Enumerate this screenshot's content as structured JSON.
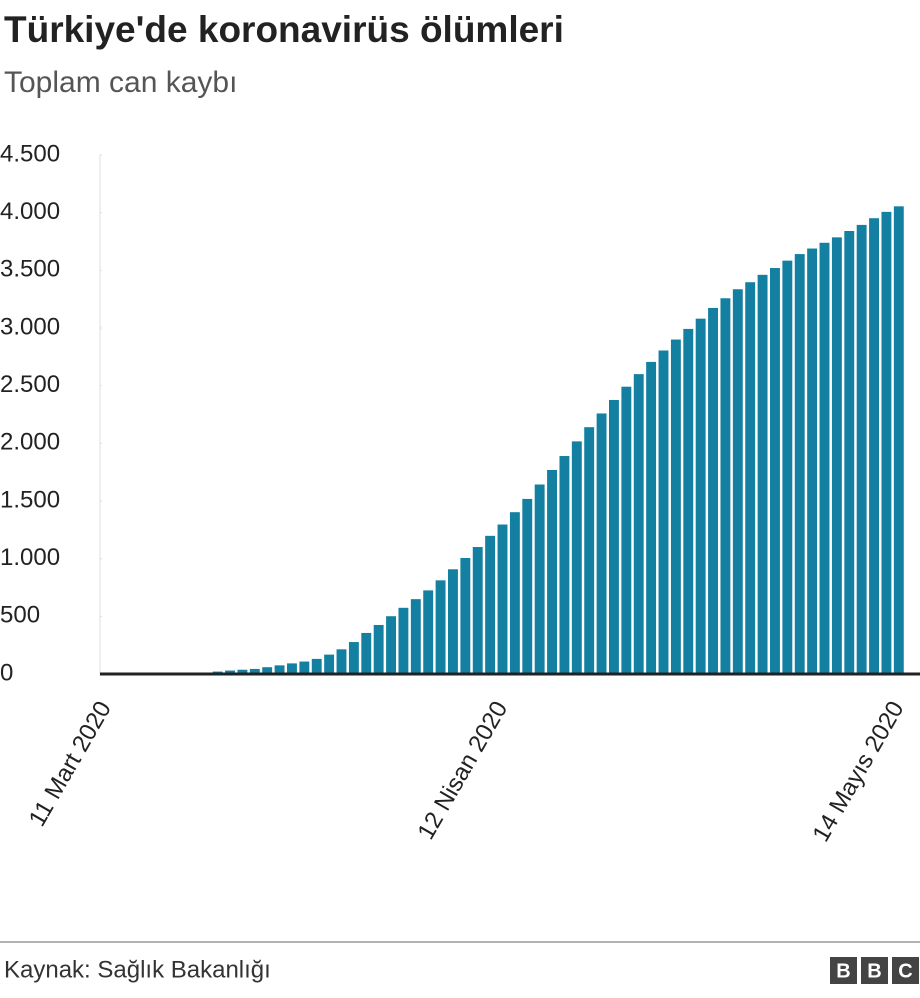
{
  "chart_data": {
    "type": "bar",
    "title": "Türkiye'de koronavirüs ölümleri",
    "subtitle": "Toplam can kaybı",
    "source": "Kaynak: Sağlık Bakanlığı",
    "logo": [
      "B",
      "B",
      "C"
    ],
    "color": "#1380a1",
    "categories": [
      "11 Mart 2020",
      null,
      null,
      null,
      null,
      null,
      null,
      null,
      null,
      null,
      null,
      null,
      null,
      null,
      null,
      null,
      null,
      null,
      null,
      null,
      null,
      null,
      null,
      null,
      null,
      null,
      null,
      null,
      null,
      null,
      null,
      null,
      "12 Nisan 2020",
      null,
      null,
      null,
      null,
      null,
      null,
      null,
      null,
      null,
      null,
      null,
      null,
      null,
      null,
      null,
      null,
      null,
      null,
      null,
      null,
      null,
      null,
      null,
      null,
      null,
      null,
      null,
      null,
      null,
      null,
      null,
      "14 Mayıs 2020"
    ],
    "values": [
      0,
      0,
      0,
      0,
      0,
      1,
      2,
      3,
      9,
      21,
      30,
      37,
      44,
      59,
      75,
      92,
      108,
      131,
      168,
      214,
      277,
      356,
      425,
      501,
      574,
      649,
      725,
      812,
      908,
      1006,
      1101,
      1198,
      1296,
      1403,
      1518,
      1643,
      1769,
      1890,
      2017,
      2140,
      2259,
      2376,
      2491,
      2600,
      2706,
      2805,
      2900,
      2992,
      3081,
      3174,
      3258,
      3336,
      3397,
      3461,
      3520,
      3584,
      3641,
      3689,
      3739,
      3786,
      3841,
      3894,
      3952,
      4007,
      4055
    ],
    "ylim": [
      0,
      4500
    ],
    "yticks": [
      0,
      500,
      {
        "value": 1000,
        "label": "1.000"
      },
      {
        "value": 1500,
        "label": "1.500"
      },
      {
        "value": 2000,
        "label": "2.000"
      },
      {
        "value": 2500,
        "label": "2.500"
      },
      {
        "value": 3000,
        "label": "3.000"
      },
      {
        "value": 3500,
        "label": "3.500"
      },
      {
        "value": 4000,
        "label": "4.000"
      },
      {
        "value": 4500,
        "label": "4.500"
      }
    ],
    "grid": true
  }
}
